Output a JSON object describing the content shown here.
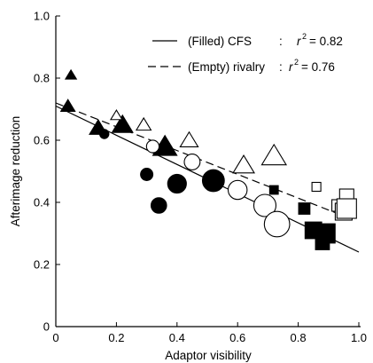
{
  "chart_data": {
    "type": "scatter",
    "xlabel": "Adaptor visibility",
    "ylabel": "Afterimage reduction",
    "xlim": [
      0,
      1.0
    ],
    "ylim": [
      0,
      1.0
    ],
    "x_ticks": [
      "0",
      "0.2",
      "0.4",
      "0.6",
      "0.8",
      "1.0"
    ],
    "y_ticks": [
      "0",
      "0.2",
      "0.4",
      "0.6",
      "0.8",
      "1.0"
    ],
    "grid": false,
    "legend_position": "top-right",
    "legend": [
      {
        "line": "solid",
        "label": "(Filled) CFS",
        "sep": ":",
        "r2_label": "r",
        "r2_value": "= 0.82"
      },
      {
        "line": "dashed",
        "label": "(Empty) rivalry",
        "sep": ":",
        "r2_label": "r",
        "r2_value": "= 0.76"
      }
    ],
    "fits": [
      {
        "style": "solid",
        "x": [
          0,
          1.0
        ],
        "y": [
          0.71,
          0.24
        ]
      },
      {
        "style": "dashed",
        "x": [
          0,
          0.94
        ],
        "y": [
          0.72,
          0.36
        ]
      }
    ],
    "series": [
      {
        "shape": "triangle",
        "fill": "filled",
        "points": [
          [
            0.05,
            0.81,
            1
          ],
          [
            0.04,
            0.71,
            2
          ],
          [
            0.14,
            0.64,
            3
          ],
          [
            0.22,
            0.65,
            4
          ],
          [
            0.36,
            0.58,
            5
          ]
        ]
      },
      {
        "shape": "circle",
        "fill": "filled",
        "points": [
          [
            0.16,
            0.62,
            1
          ],
          [
            0.3,
            0.49,
            2
          ],
          [
            0.4,
            0.46,
            4
          ],
          [
            0.34,
            0.39,
            3
          ],
          [
            0.52,
            0.47,
            5
          ]
        ]
      },
      {
        "shape": "square",
        "fill": "filled",
        "points": [
          [
            0.72,
            0.44,
            1
          ],
          [
            0.82,
            0.38,
            2
          ],
          [
            0.88,
            0.27,
            3
          ],
          [
            0.85,
            0.31,
            4
          ],
          [
            0.89,
            0.3,
            5
          ]
        ]
      },
      {
        "shape": "triangle",
        "fill": "empty",
        "points": [
          [
            0.2,
            0.68,
            1
          ],
          [
            0.29,
            0.65,
            2
          ],
          [
            0.44,
            0.6,
            3
          ],
          [
            0.62,
            0.52,
            4
          ],
          [
            0.72,
            0.55,
            5
          ]
        ]
      },
      {
        "shape": "circle",
        "fill": "empty",
        "points": [
          [
            0.32,
            0.58,
            2
          ],
          [
            0.45,
            0.53,
            3
          ],
          [
            0.6,
            0.44,
            4
          ],
          [
            0.69,
            0.39,
            5
          ],
          [
            0.73,
            0.33,
            6
          ]
        ]
      },
      {
        "shape": "square",
        "fill": "empty",
        "points": [
          [
            0.86,
            0.45,
            1
          ],
          [
            0.93,
            0.39,
            2
          ],
          [
            0.96,
            0.42,
            3
          ],
          [
            0.95,
            0.37,
            4
          ],
          [
            0.96,
            0.38,
            5
          ]
        ]
      }
    ]
  }
}
